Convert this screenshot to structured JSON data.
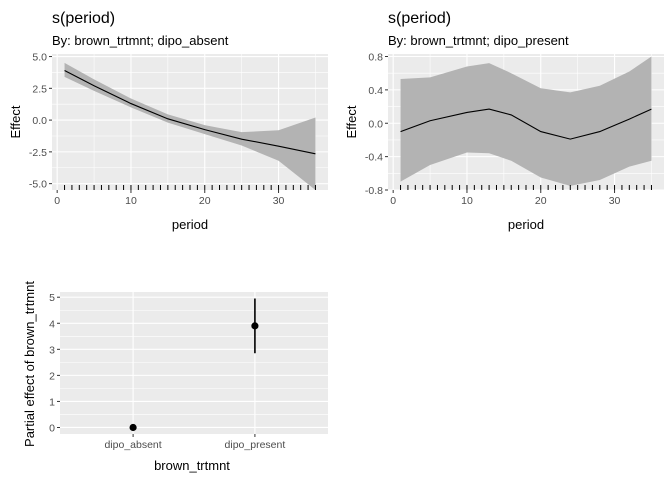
{
  "panels": [
    {
      "title": "s(period)",
      "subtitle": "By: brown_trtmnt; dipo_absent",
      "xlabel": "period",
      "ylabel": "Effect"
    },
    {
      "title": "s(period)",
      "subtitle": "By: brown_trtmnt; dipo_present",
      "xlabel": "period",
      "ylabel": "Effect"
    },
    {
      "title": "",
      "subtitle": "",
      "xlabel": "brown_trtmnt",
      "ylabel": "Partial effect of brown_trtmnt"
    }
  ],
  "colors": {
    "panel_bg": "#EBEBEB",
    "grid_major": "#FFFFFF",
    "ribbon": "#B3B3B3",
    "line": "#000000",
    "tick_text": "#4D4D4D"
  },
  "chart_data": [
    {
      "type": "line",
      "title": "s(period)",
      "subtitle": "By: brown_trtmnt; dipo_absent",
      "xlabel": "period",
      "ylabel": "Effect",
      "xlim": [
        -0.7,
        36.7
      ],
      "ylim": [
        -5.5,
        5.2
      ],
      "xticks": [
        0,
        10,
        20,
        30
      ],
      "yticks": [
        -5.0,
        -2.5,
        0.0,
        2.5,
        5.0
      ],
      "ytick_labels": [
        "-5.0",
        "-2.5",
        "0.0",
        "2.5",
        "5.0"
      ],
      "rug": [
        1,
        2,
        3,
        4,
        5,
        6,
        7,
        8,
        9,
        10,
        11,
        12,
        13,
        14,
        15,
        16,
        17,
        18,
        19,
        20,
        21,
        22,
        23,
        24,
        25,
        26,
        27,
        28,
        29,
        30,
        31,
        32,
        33,
        34,
        35
      ],
      "grid": true,
      "x": [
        1,
        5,
        10,
        15,
        20,
        25,
        30,
        35
      ],
      "fit": [
        3.9,
        2.7,
        1.3,
        0.1,
        -0.75,
        -1.5,
        -2.05,
        -2.65
      ],
      "lower": [
        3.4,
        2.3,
        1.0,
        -0.2,
        -1.1,
        -2.0,
        -3.2,
        -5.5
      ],
      "upper": [
        4.5,
        3.2,
        1.7,
        0.45,
        -0.4,
        -0.95,
        -0.8,
        0.2
      ]
    },
    {
      "type": "line",
      "title": "s(period)",
      "subtitle": "By: brown_trtmnt; dipo_present",
      "xlabel": "period",
      "ylabel": "Effect",
      "xlim": [
        -0.7,
        36.7
      ],
      "ylim": [
        -0.8,
        0.83
      ],
      "xticks": [
        0,
        10,
        20,
        30
      ],
      "yticks": [
        -0.8,
        -0.4,
        0.0,
        0.4,
        0.8
      ],
      "ytick_labels": [
        "-0.8",
        "-0.4",
        "0.0",
        "0.4",
        "0.8"
      ],
      "rug": [
        1,
        2,
        3,
        4,
        5,
        6,
        7,
        8,
        9,
        10,
        11,
        12,
        13,
        14,
        15,
        16,
        17,
        18,
        19,
        20,
        21,
        22,
        23,
        24,
        25,
        26,
        27,
        28,
        29,
        30,
        31,
        32,
        33,
        34,
        35
      ],
      "grid": true,
      "x": [
        1,
        5,
        10,
        13,
        16,
        20,
        24,
        28,
        32,
        35
      ],
      "fit": [
        -0.1,
        0.03,
        0.13,
        0.17,
        0.1,
        -0.1,
        -0.19,
        -0.1,
        0.05,
        0.17
      ],
      "lower": [
        -0.7,
        -0.5,
        -0.35,
        -0.36,
        -0.45,
        -0.65,
        -0.75,
        -0.68,
        -0.52,
        -0.45
      ],
      "upper": [
        0.53,
        0.55,
        0.68,
        0.72,
        0.6,
        0.42,
        0.37,
        0.45,
        0.62,
        0.8
      ]
    },
    {
      "type": "scatter",
      "title": "",
      "xlabel": "brown_trtmnt",
      "ylabel": "Partial effect of brown_trtmnt",
      "categories": [
        "dipo_absent",
        "dipo_present"
      ],
      "values": [
        0,
        3.9
      ],
      "lower": [
        0,
        2.85
      ],
      "upper": [
        0,
        4.95
      ],
      "ylim": [
        -0.25,
        5.2
      ],
      "yticks": [
        0,
        1,
        2,
        3,
        4,
        5
      ],
      "ytick_labels": [
        "0",
        "1",
        "2",
        "3",
        "4",
        "5"
      ],
      "grid": true
    }
  ]
}
